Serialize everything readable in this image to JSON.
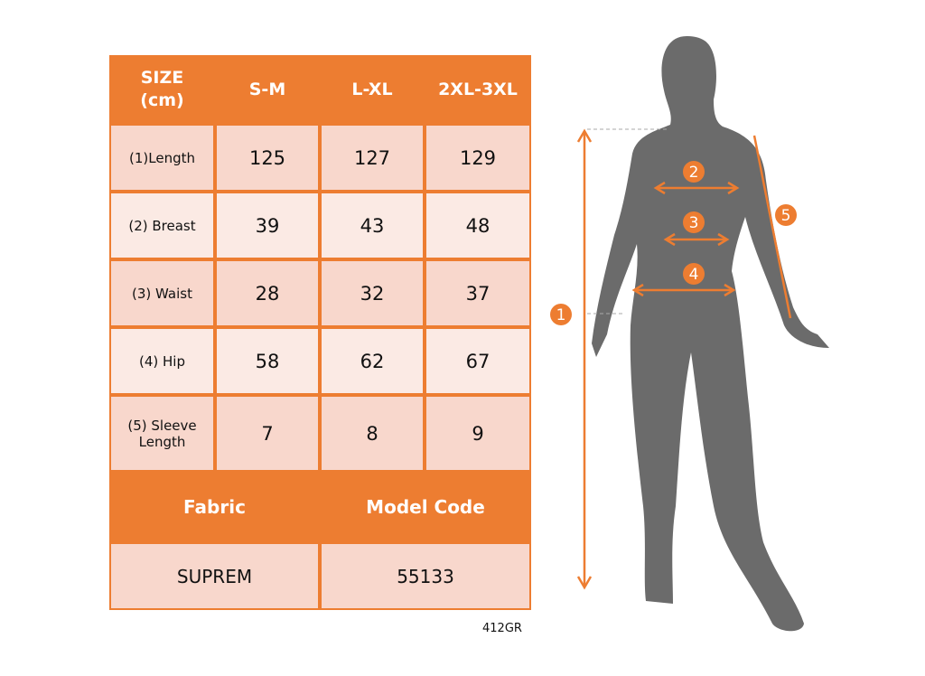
{
  "table": {
    "header": [
      "SIZE\n(cm)",
      "S-M",
      "L-XL",
      "2XL-3XL"
    ],
    "rows": [
      {
        "label": "(1)Length",
        "values": [
          "125",
          "127",
          "129"
        ]
      },
      {
        "label": "(2) Breast",
        "values": [
          "39",
          "43",
          "48"
        ]
      },
      {
        "label": "(3) Waist",
        "values": [
          "28",
          "32",
          "37"
        ]
      },
      {
        "label": "(4) Hip",
        "values": [
          "58",
          "62",
          "67"
        ]
      },
      {
        "label": "(5) Sleeve Length",
        "values": [
          "7",
          "8",
          "9"
        ]
      }
    ],
    "footer_header": [
      "Fabric",
      "Model Code"
    ],
    "footer_values": [
      "SUPREM",
      "55133"
    ]
  },
  "product_code": "412GR",
  "diagram": {
    "markers": [
      "1",
      "2",
      "3",
      "4",
      "5"
    ]
  },
  "colors": {
    "accent": "#ED7D31",
    "silhouette": "#6B6B6B"
  }
}
